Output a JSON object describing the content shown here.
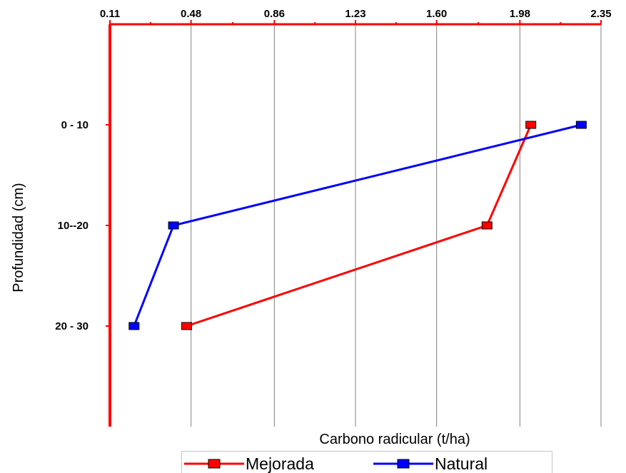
{
  "chart_data": {
    "type": "line",
    "orientation": "depth-profile",
    "title": "",
    "xlabel": "Carbono radicular  (t/ha)",
    "ylabel": "Profundidad (cm)",
    "x_axis_position": "top",
    "x_ticks": [
      "0.11",
      "0.48",
      "0.86",
      "1.23",
      "1.60",
      "1.98",
      "2.35"
    ],
    "xlim": [
      0.11,
      2.35
    ],
    "categories": [
      "0 - 10",
      "10--20",
      "20 - 30"
    ],
    "series": [
      {
        "name": "Mejorada",
        "color": "#ff0000",
        "values": [
          2.03,
          1.83,
          0.46
        ]
      },
      {
        "name": "Natural",
        "color": "#0000ff",
        "values": [
          2.26,
          0.4,
          0.22
        ]
      }
    ],
    "grid": "vertical",
    "legend_position": "bottom"
  },
  "colors": {
    "axis": "#ff0000",
    "grid": "#808080"
  }
}
